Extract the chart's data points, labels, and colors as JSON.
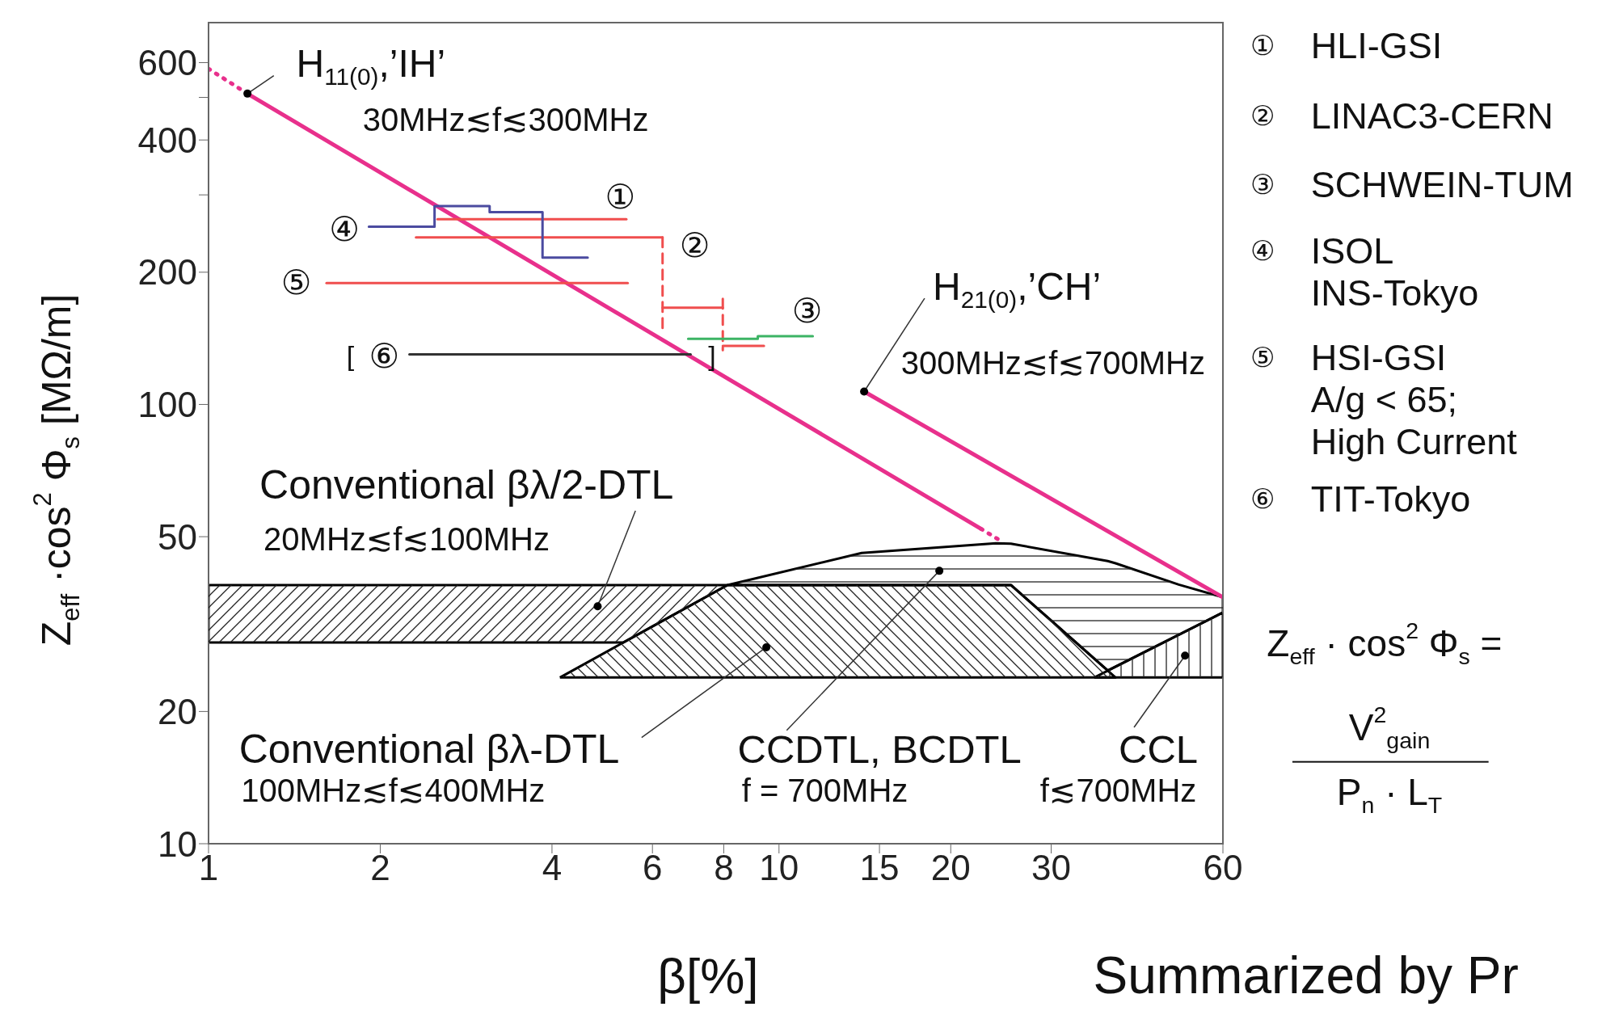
{
  "chart_data": {
    "type": "line",
    "xlabel": "β[%]",
    "ylabel": "Z$_{eff}$ ·cos$^{2}$ Φ$_{s}$   [MΩ/m]",
    "log": "xy",
    "xlim": [
      1,
      60
    ],
    "ylim": [
      10,
      740
    ],
    "xticks": [
      1,
      2,
      4,
      6,
      8,
      10,
      15,
      20,
      30,
      60
    ],
    "yticks": [
      10,
      20,
      50,
      100,
      200,
      {
        "value": 300,
        "label": null
      },
      400,
      {
        "value": 500,
        "label": null
      },
      600
    ],
    "series": [
      {
        "type": "area",
        "color": "#000000",
        "line_style": "solid",
        "x": [
          1,
          8.12,
          5.33,
          1,
          1
        ],
        "values": [
          38.8,
          38.8,
          28.7,
          28.7,
          38.8
        ]
      },
      {
        "type": "area",
        "color": "#000000",
        "line_style": "solid",
        "x": [
          4.13,
          8.12,
          25.5,
          38.9,
          4.13
        ],
        "values": [
          23.9,
          38.8,
          38.8,
          23.9,
          23.9
        ]
      },
      {
        "type": "area",
        "color": "#000000",
        "line_style": "solid",
        "x": [
          8.12,
          13.96,
          24,
          25.5,
          37.7,
          38.9,
          50.2,
          60,
          60,
          37.7,
          25.5,
          8.12
        ],
        "values": [
          38.8,
          45.9,
          48.3,
          48.2,
          44.0,
          43.5,
          38.9,
          36.4,
          33.6,
          24.8,
          38.8,
          38.8
        ]
      },
      {
        "type": "area",
        "color": "#000000",
        "line_style": "solid",
        "x": [
          35.7,
          60,
          60,
          35.7
        ],
        "values": [
          23.9,
          33.6,
          23.9,
          23.9
        ]
      },
      {
        "color": "#e8308c",
        "line_style": "dotted",
        "x": [
          1,
          1.17
        ],
        "values": [
          581,
          510
        ]
      },
      {
        "color": "#e8308c",
        "line_style": "solid",
        "x": [
          1.17,
          22.6
        ],
        "values": [
          510,
          52.1
        ]
      },
      {
        "color": "#e8308c",
        "line_style": "dotted",
        "x": [
          22.6,
          24.3
        ],
        "values": [
          52.1,
          49.2
        ]
      },
      {
        "color": "#e8308c",
        "line_style": "solid",
        "x": [
          14.1,
          60
        ],
        "values": [
          107,
          36.4
        ]
      },
      {
        "color": "#f04e4e",
        "line_style": "solid",
        "x": [
          2.52,
          5.4
        ],
        "values": [
          264,
          264
        ]
      },
      {
        "color": "#f04e4e",
        "line_style": "solid",
        "x": [
          2.31,
          6.25
        ],
        "values": [
          240,
          240
        ]
      },
      {
        "color": "#f04e4e",
        "line_style": "solid",
        "x": [
          6.25,
          7.97
        ],
        "values": [
          166,
          166
        ]
      },
      {
        "color": "#f04e4e",
        "line_style": "solid",
        "x": [
          7.97,
          9.41
        ],
        "values": [
          136,
          136
        ]
      },
      {
        "color": "#f04e4e",
        "line_style": "dashed",
        "x": [
          6.25,
          6.25
        ],
        "values": [
          240,
          148
        ]
      },
      {
        "color": "#f04e4e",
        "line_style": "dashed",
        "x": [
          7.97,
          7.97
        ],
        "values": [
          174,
          133
        ]
      },
      {
        "color": "#3cb464",
        "line_style": "solid",
        "x": [
          6.93,
          9.18,
          9.18,
          11.46
        ],
        "values": [
          141,
          141,
          143,
          143
        ]
      },
      {
        "color": "#4b4ba0",
        "line_style": "solid",
        "x": [
          1.91,
          2.49,
          2.49,
          3.11,
          3.11,
          3.85,
          3.85,
          4.62
        ],
        "values": [
          254,
          254,
          283,
          283,
          274,
          274,
          216,
          216
        ]
      },
      {
        "color": "#f04e4e",
        "line_style": "solid",
        "x": [
          1.61,
          5.43
        ],
        "values": [
          189,
          189
        ]
      },
      {
        "color": "#333333",
        "line_style": "solid",
        "x": [
          2.25,
          7.0
        ],
        "values": [
          130,
          130
        ]
      }
    ],
    "annotations": [
      {
        "text": "H$_{11(0)}$,’IH’",
        "x": 1.17,
        "y": 510
      },
      "30MHz≲f≲300MHz",
      {
        "text": "H$_{21(0)}$,’CH’",
        "x": 14.1,
        "y": 107
      },
      "300MHz≲f≲700MHz",
      {
        "text": "Conventional  βλ/2-DTL",
        "x": 4.81,
        "y": 34.7
      },
      "20MHz≲f≲100MHz",
      {
        "text": "Conventional  βλ-DTL",
        "x": 9.5,
        "y": 28.0
      },
      "100MHz≲f≲400MHz",
      {
        "text": "CCDTL, BCDTL",
        "x": 19.1,
        "y": 41.8
      },
      "f = 700MHz",
      {
        "text": "CCL",
        "x": 51.5,
        "y": 26.8
      },
      "f≲700MHz",
      "①",
      "②",
      "③",
      "④",
      "⑤",
      "⑥",
      "[",
      "]",
      "①",
      "②",
      "③",
      "④",
      "⑤",
      "⑥",
      "HLI-GSI",
      "LINAC3-CERN",
      "SCHWEIN-TUM",
      "ISOL\nINS-Tokyo",
      "HSI-GSI\nA/g < 65;\nHigh Current",
      "TIT-Tokyo",
      "Z$_{eff}$ · cos$^{2}$ Φ$_{s}$  =",
      "V$^{2}$$_{gain}$",
      "P$_{n}$ · L$_{T}$",
      "Summarized by Pr"
    ]
  }
}
